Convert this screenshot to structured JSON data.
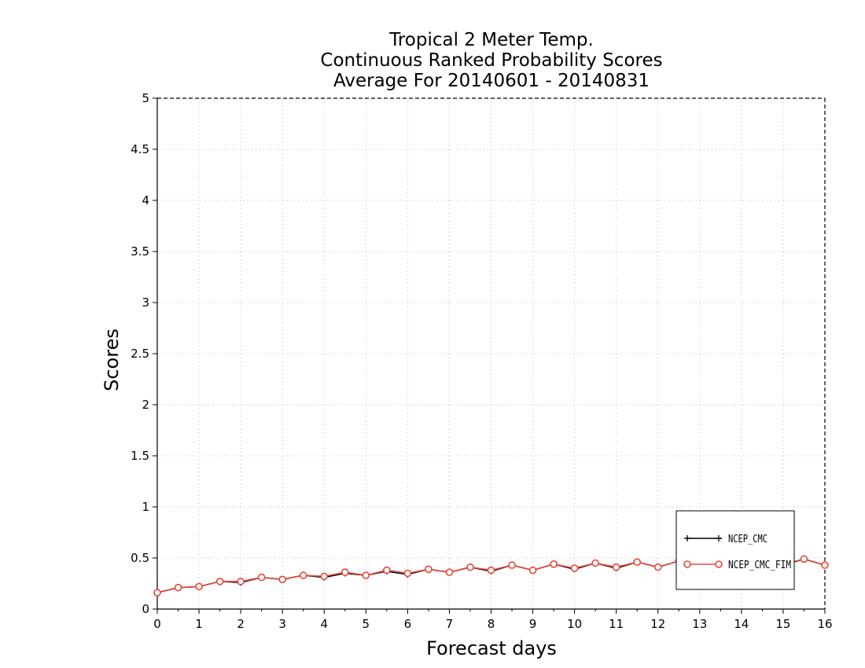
{
  "chart_data": {
    "type": "line",
    "title_lines": [
      "Tropical 2 Meter Temp.",
      "Continuous Ranked Probability Scores",
      "Average For 20140601 - 20140831"
    ],
    "xlabel": "Forecast days",
    "ylabel": "Scores",
    "xlim": [
      0,
      16
    ],
    "ylim": [
      0,
      5
    ],
    "xticks": [
      0,
      1,
      2,
      3,
      4,
      5,
      6,
      7,
      8,
      9,
      10,
      11,
      12,
      13,
      14,
      15,
      16
    ],
    "yticks": [
      0,
      0.5,
      1,
      1.5,
      2,
      2.5,
      3,
      3.5,
      4,
      4.5,
      5
    ],
    "xtick_labels": [
      "0",
      "1",
      "2",
      "3",
      "4",
      "5",
      "6",
      "7",
      "8",
      "9",
      "10",
      "11",
      "12",
      "13",
      "14",
      "15",
      "16"
    ],
    "ytick_labels": [
      "0",
      "0.5",
      "1",
      "1.5",
      "2",
      "2.5",
      "3",
      "3.5",
      "4",
      "4.5",
      "5"
    ],
    "grid": true,
    "legend_position": "bottom-right",
    "x": [
      0,
      0.5,
      1,
      1.5,
      2,
      2.5,
      3,
      3.5,
      4,
      4.5,
      5,
      5.5,
      6,
      6.5,
      7,
      7.5,
      8,
      8.5,
      9,
      9.5,
      10,
      10.5,
      11,
      11.5,
      12,
      12.5,
      13,
      13.5,
      14,
      14.5,
      15,
      15.5,
      16
    ],
    "series": [
      {
        "name": "NCEP_CMC",
        "color": "#000000",
        "marker": "plus",
        "values": [
          0.16,
          0.21,
          0.22,
          0.27,
          0.26,
          0.31,
          0.29,
          0.33,
          0.31,
          0.35,
          0.33,
          0.37,
          0.34,
          0.39,
          0.36,
          0.41,
          0.37,
          0.43,
          0.38,
          0.44,
          0.39,
          0.45,
          0.4,
          0.46,
          0.41,
          0.47,
          0.42,
          0.47,
          0.43,
          0.48,
          0.43,
          0.49,
          0.43
        ]
      },
      {
        "name": "NCEP_CMC_FIM",
        "color": "#e8463c",
        "marker": "circle",
        "values": [
          0.16,
          0.21,
          0.22,
          0.27,
          0.27,
          0.31,
          0.29,
          0.33,
          0.32,
          0.36,
          0.33,
          0.38,
          0.35,
          0.39,
          0.36,
          0.41,
          0.38,
          0.43,
          0.38,
          0.44,
          0.4,
          0.45,
          0.41,
          0.46,
          0.41,
          0.47,
          0.42,
          0.47,
          0.43,
          0.48,
          0.44,
          0.49,
          0.43
        ]
      }
    ]
  }
}
